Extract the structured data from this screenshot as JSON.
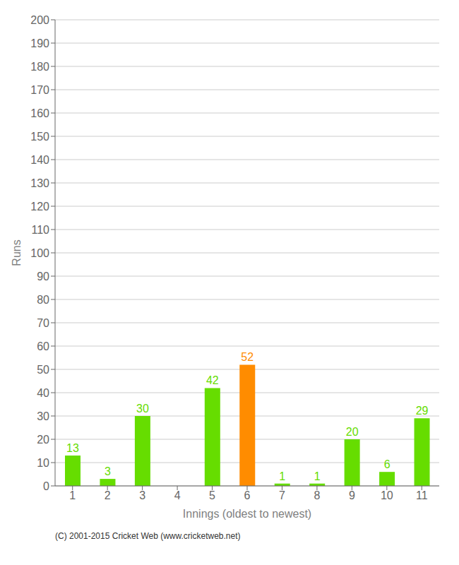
{
  "chart_data": {
    "type": "bar",
    "categories": [
      "1",
      "2",
      "3",
      "4",
      "5",
      "6",
      "7",
      "8",
      "9",
      "10",
      "11"
    ],
    "values": [
      13,
      3,
      30,
      0,
      42,
      52,
      1,
      1,
      20,
      6,
      29
    ],
    "colors": [
      "#66dd00",
      "#66dd00",
      "#66dd00",
      "#66dd00",
      "#66dd00",
      "#ff8c00",
      "#66dd00",
      "#66dd00",
      "#66dd00",
      "#66dd00",
      "#66dd00"
    ],
    "xlabel": "Innings (oldest to newest)",
    "ylabel": "Runs",
    "ylim": [
      0,
      200
    ],
    "yticks": [
      0,
      10,
      20,
      30,
      40,
      50,
      60,
      70,
      80,
      90,
      100,
      110,
      120,
      130,
      140,
      150,
      160,
      170,
      180,
      190,
      200
    ],
    "grid": true,
    "data_labels": true,
    "annotations": [
      "(C) 2001-2015 Cricket Web (www.cricketweb.net)"
    ]
  }
}
